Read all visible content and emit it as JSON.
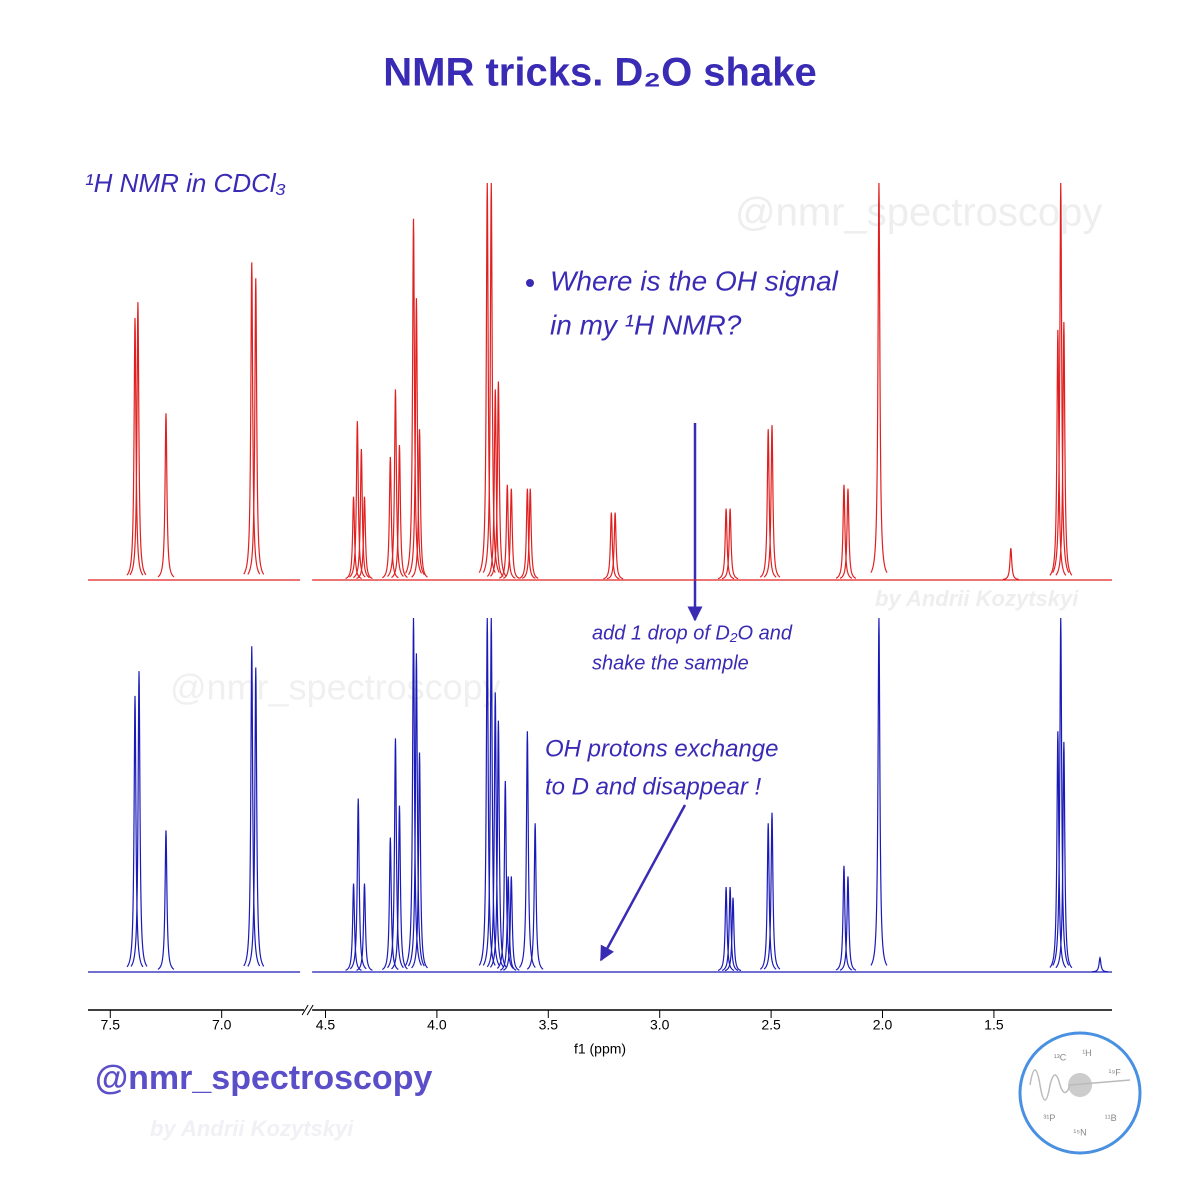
{
  "chart_data": {
    "type": "spectrum",
    "title": "NMR tricks. D₂O shake",
    "subtitle": "¹H NMR in CDCl₃",
    "annotations": [
      [
        "Where is the OH signal",
        "in my ¹H NMR?"
      ],
      [
        "add 1 drop of D₂O and",
        "shake the sample"
      ],
      [
        "OH protons exchange",
        "to D and disappear !"
      ]
    ],
    "xlabel": "f1 (ppm)",
    "xlim": [
      7.6,
      0.97
    ],
    "xbreak": [
      6.63,
      4.56
    ],
    "xticks": [
      7.5,
      {
        "value": 7,
        "label": "7.0"
      },
      4.5,
      {
        "value": 4,
        "label": "4.0"
      },
      3.5,
      {
        "value": 3,
        "label": "3.0"
      },
      2.5,
      {
        "value": 2,
        "label": "2.0"
      },
      1.5
    ],
    "ylim": [
      0,
      100
    ],
    "series": [
      {
        "color": "#e02020",
        "x": [
          7.389,
          7.376,
          7.25,
          6.865,
          6.847,
          4.374,
          4.357,
          4.339,
          4.325,
          4.209,
          4.186,
          4.168,
          4.105,
          4.092,
          4.078,
          3.774,
          3.756,
          3.738,
          3.724,
          3.684,
          3.666,
          3.594,
          3.581,
          3.217,
          3.2,
          2.702,
          2.684,
          2.513,
          2.496,
          2.173,
          2.155,
          2.016,
          1.424,
          1.213,
          1.2,
          1.186
        ],
        "values": [
          66,
          70,
          42,
          80,
          76,
          21,
          40,
          33,
          21,
          31,
          48,
          34,
          91,
          71,
          38,
          100,
          100,
          48,
          50,
          24,
          23,
          23,
          23,
          17,
          17,
          18,
          18,
          38,
          39,
          24,
          23,
          100,
          8,
          63,
          100,
          65
        ]
      },
      {
        "color": "#1a1ab8",
        "x": [
          7.389,
          7.371,
          7.25,
          6.865,
          6.847,
          4.374,
          4.353,
          4.325,
          4.209,
          4.186,
          4.168,
          4.105,
          4.092,
          4.078,
          3.774,
          3.756,
          3.738,
          3.724,
          3.693,
          3.68,
          3.666,
          3.594,
          3.559,
          2.702,
          2.684,
          2.671,
          2.513,
          2.496,
          2.173,
          2.155,
          2.016,
          1.213,
          1.2,
          1.186,
          1.024
        ],
        "values": [
          78,
          85,
          40,
          92,
          86,
          25,
          49,
          25,
          38,
          66,
          47,
          100,
          90,
          62,
          100,
          100,
          79,
          71,
          54,
          27,
          27,
          68,
          42,
          24,
          24,
          21,
          42,
          45,
          30,
          27,
          100,
          68,
          100,
          65,
          4
        ]
      }
    ]
  },
  "footer": {
    "handle": "@nmr_spectroscopy",
    "author": "by Andrii Kozytskyi",
    "logo": [
      "¹³C",
      "¹H",
      "¹⁹F",
      "¹¹B",
      "¹⁵N",
      "³¹P"
    ]
  }
}
